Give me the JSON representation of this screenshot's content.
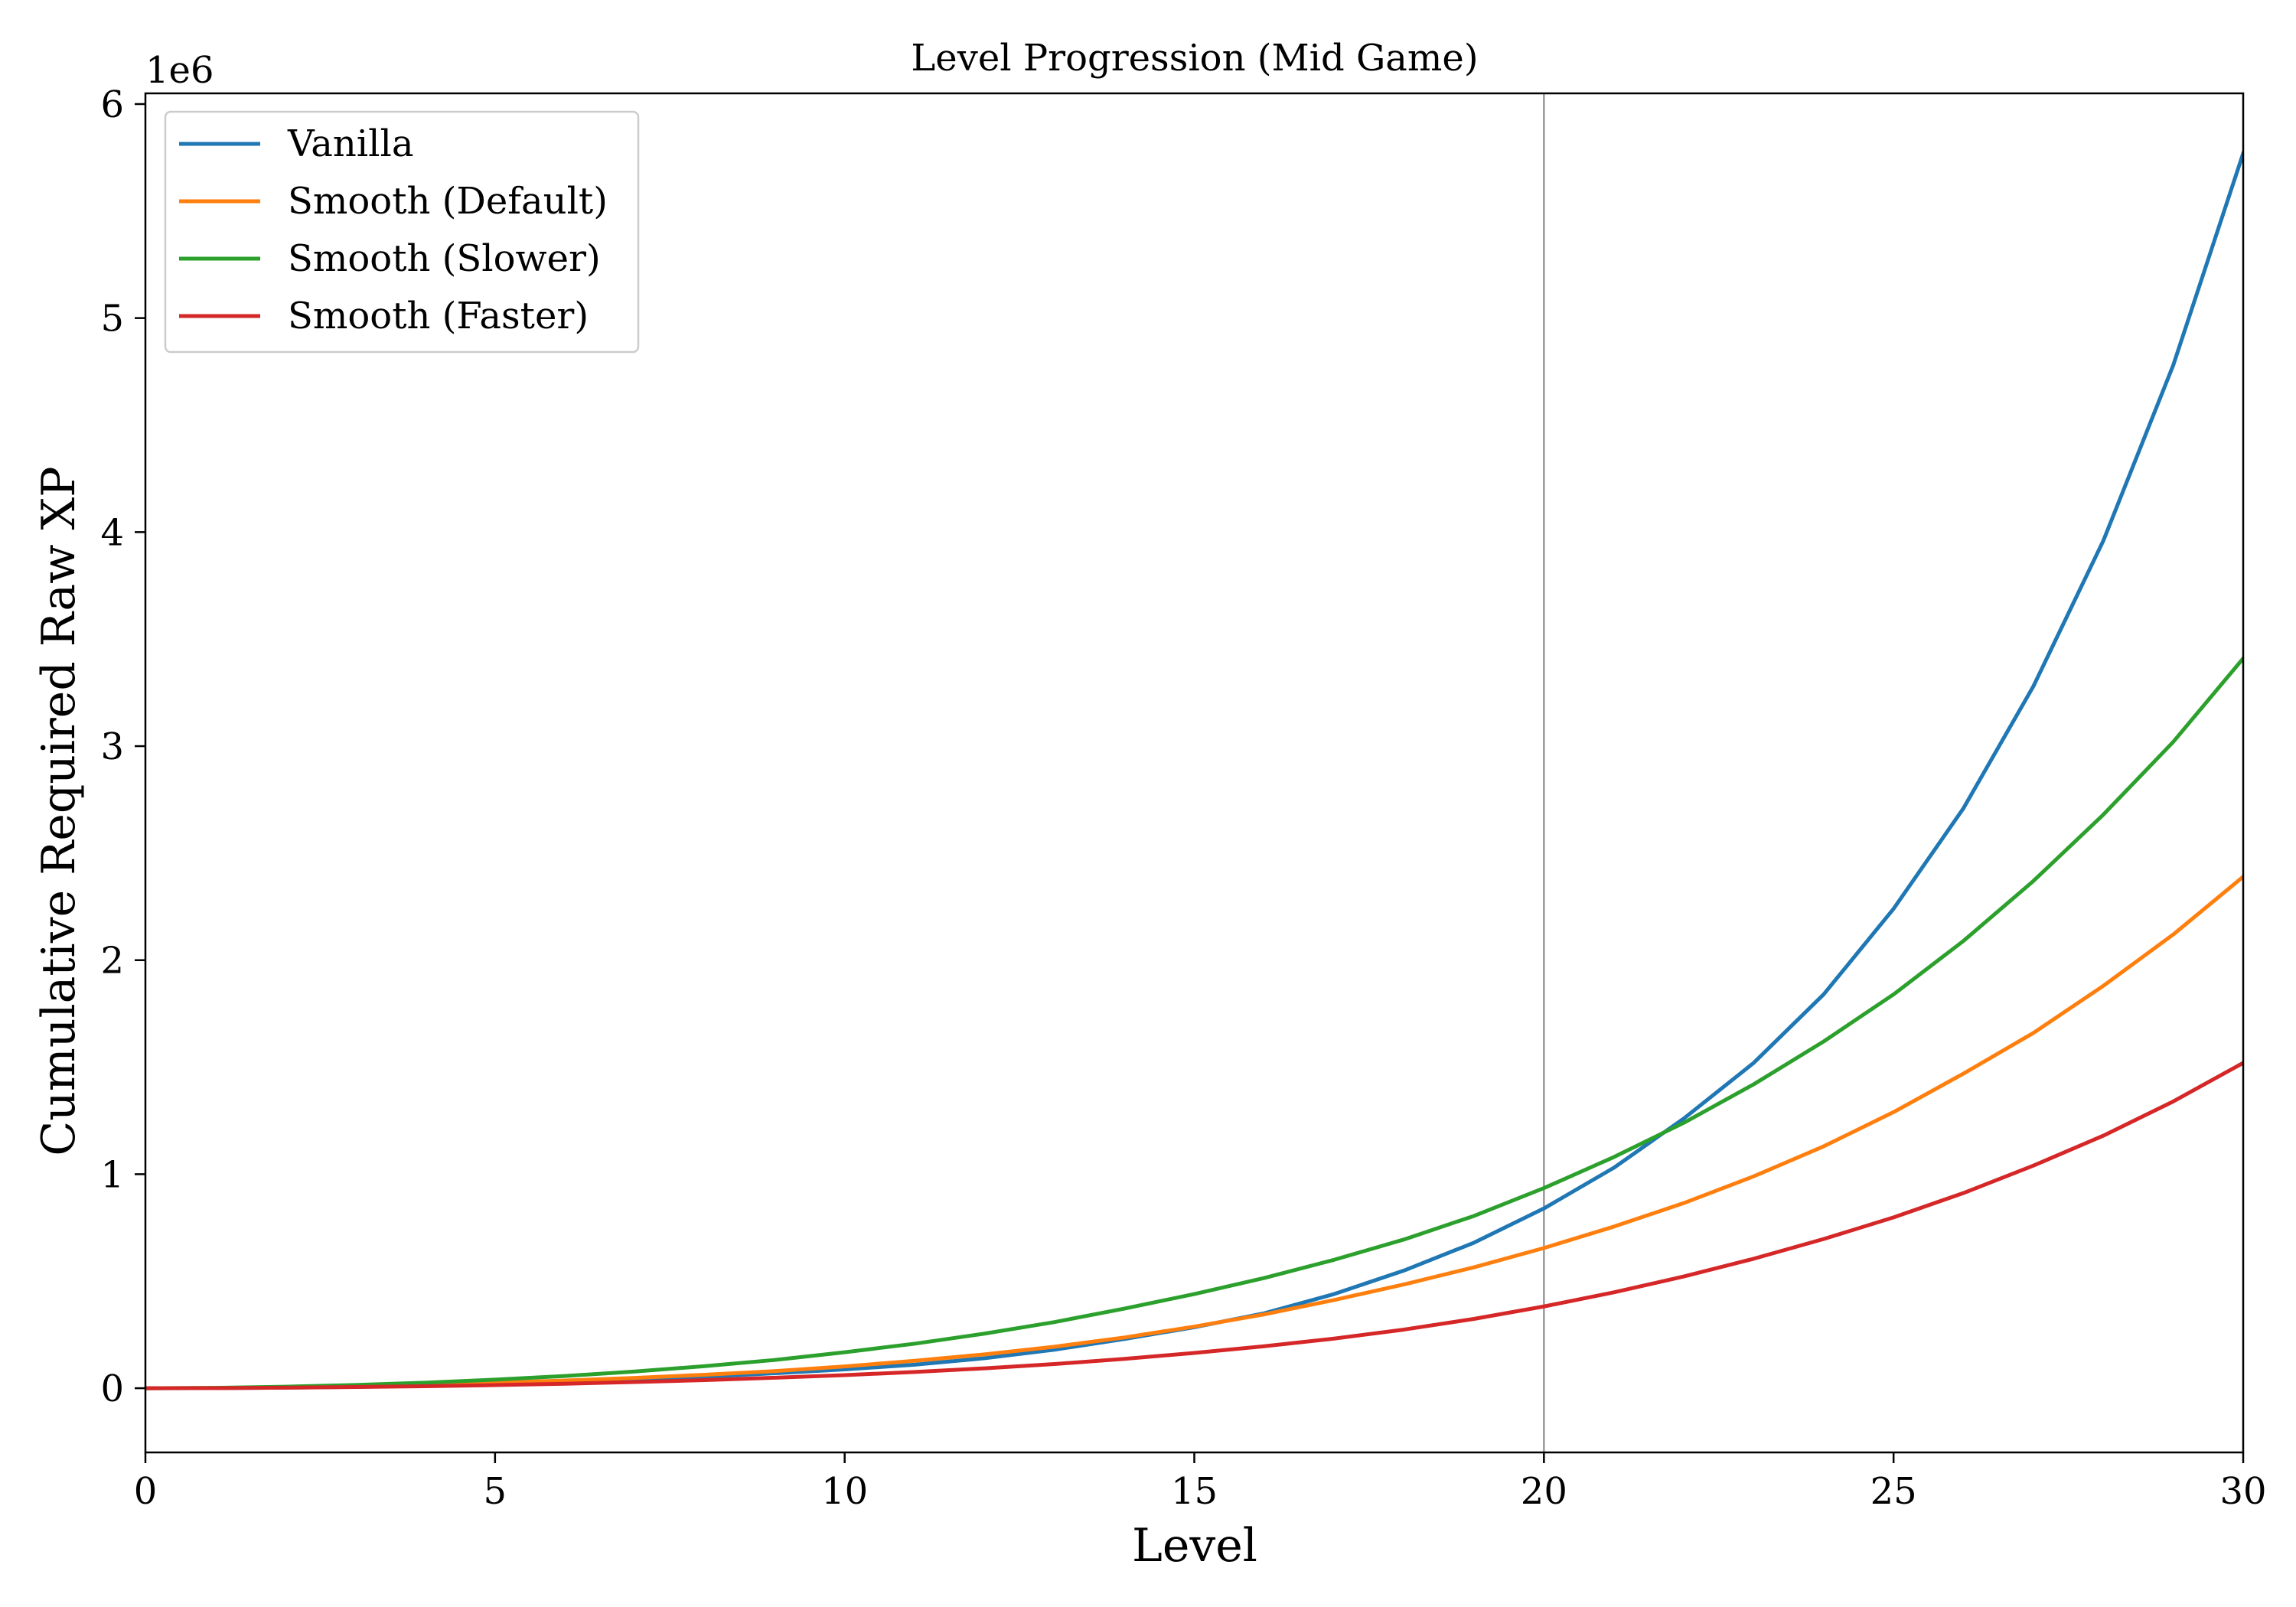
{
  "chart_data": {
    "type": "line",
    "title": "Level Progression (Mid Game)",
    "xlabel": "Level",
    "ylabel": "Cumulative Required Raw XP",
    "y_offset_label": "1e6",
    "xlim": [
      0,
      30
    ],
    "ylim": [
      -300000,
      6050000
    ],
    "x_ticks": [
      0,
      5,
      10,
      15,
      20,
      25,
      30
    ],
    "x_tick_labels": [
      "0",
      "5",
      "10",
      "15",
      "20",
      "25",
      "30"
    ],
    "y_ticks": [
      0,
      1000000,
      2000000,
      3000000,
      4000000,
      5000000,
      6000000
    ],
    "y_tick_labels": [
      "0",
      "1",
      "2",
      "3",
      "4",
      "5",
      "6"
    ],
    "grid": false,
    "vline_x": 20,
    "legend_position": "upper-left",
    "x": [
      0,
      1,
      2,
      3,
      4,
      5,
      6,
      7,
      8,
      9,
      10,
      11,
      12,
      13,
      14,
      15,
      16,
      17,
      18,
      19,
      20,
      21,
      22,
      23,
      24,
      25,
      26,
      27,
      28,
      29,
      30
    ],
    "series": [
      {
        "name": "Vanilla",
        "color": "#1f77b4",
        "values": [
          0,
          500,
          2500,
          6000,
          11500,
          19000,
          28000,
          39000,
          53000,
          70000,
          88000,
          110000,
          140000,
          180000,
          230000,
          285000,
          350000,
          440000,
          550000,
          680000,
          840000,
          1030000,
          1260000,
          1520000,
          1840000,
          2240000,
          2710000,
          3280000,
          3960000,
          4780000,
          5770000
        ]
      },
      {
        "name": "Smooth (Default)",
        "color": "#ff7f0e",
        "values": [
          0,
          1000,
          5000,
          10500,
          17500,
          26000,
          36000,
          48000,
          63000,
          80000,
          102000,
          128000,
          158000,
          194000,
          237000,
          288000,
          345000,
          412000,
          485000,
          565000,
          655000,
          755000,
          865000,
          990000,
          1130000,
          1290000,
          1470000,
          1660000,
          1880000,
          2120000,
          2390000
        ]
      },
      {
        "name": "Smooth (Slower)",
        "color": "#2ca02c",
        "values": [
          0,
          1500,
          7000,
          15000,
          26000,
          40000,
          57000,
          78000,
          103000,
          132000,
          168000,
          208000,
          255000,
          309000,
          372000,
          440000,
          515000,
          600000,
          695000,
          805000,
          935000,
          1080000,
          1240000,
          1420000,
          1620000,
          1840000,
          2090000,
          2370000,
          2680000,
          3020000,
          3410000
        ]
      },
      {
        "name": "Smooth (Faster)",
        "color": "#d62728",
        "values": [
          0,
          500,
          2500,
          5500,
          9500,
          14500,
          21000,
          29000,
          38000,
          49000,
          61000,
          76000,
          93000,
          113000,
          137000,
          165000,
          196000,
          232000,
          274000,
          324000,
          382000,
          448000,
          522000,
          605000,
          697000,
          798000,
          912000,
          1040000,
          1180000,
          1340000,
          1520000
        ]
      }
    ]
  }
}
